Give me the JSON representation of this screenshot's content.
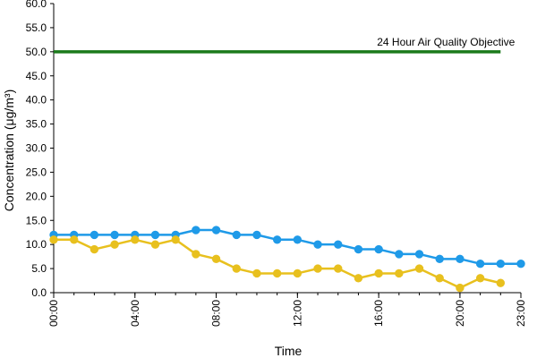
{
  "chart_data": {
    "type": "line",
    "xlabel": "Time",
    "ylabel": "Concentration (μg/m³)",
    "ylim": [
      0,
      60
    ],
    "y_ticks": [
      "0.0",
      "5.0",
      "10.0",
      "15.0",
      "20.0",
      "25.0",
      "30.0",
      "35.0",
      "40.0",
      "45.0",
      "50.0",
      "55.0",
      "60.0"
    ],
    "x_ticks": [
      {
        "hour": 0,
        "label": "00:00"
      },
      {
        "hour": 4,
        "label": "04:00"
      },
      {
        "hour": 8,
        "label": "08:00"
      },
      {
        "hour": 12,
        "label": "12:00"
      },
      {
        "hour": 16,
        "label": "16:00"
      },
      {
        "hour": 20,
        "label": "20:00"
      },
      {
        "hour": 23,
        "label": "23:00"
      }
    ],
    "grid": false,
    "objective": {
      "label": "24 Hour Air Quality Objective",
      "value": 50,
      "x_start": 0,
      "x_end": 22,
      "color": "#1a7a1a"
    },
    "series": [
      {
        "color": "#1f9ae8",
        "x": [
          0,
          1,
          2,
          3,
          4,
          5,
          6,
          7,
          8,
          9,
          10,
          11,
          12,
          13,
          14,
          15,
          16,
          17,
          18,
          19,
          20,
          21,
          22,
          23
        ],
        "values": [
          12,
          12,
          12,
          12,
          12,
          12,
          12,
          13,
          13,
          12,
          12,
          11,
          11,
          10,
          10,
          9,
          9,
          8,
          8,
          7,
          7,
          6,
          6,
          6
        ]
      },
      {
        "color": "#e8c01e",
        "x": [
          0,
          1,
          2,
          3,
          4,
          5,
          6,
          7,
          8,
          9,
          10,
          11,
          12,
          13,
          14,
          15,
          16,
          17,
          18,
          19,
          20,
          21,
          22
        ],
        "values": [
          11,
          11,
          9,
          10,
          11,
          10,
          11,
          8,
          7,
          5,
          4,
          4,
          4,
          5,
          5,
          3,
          4,
          4,
          5,
          3,
          1,
          3,
          2
        ]
      }
    ]
  }
}
